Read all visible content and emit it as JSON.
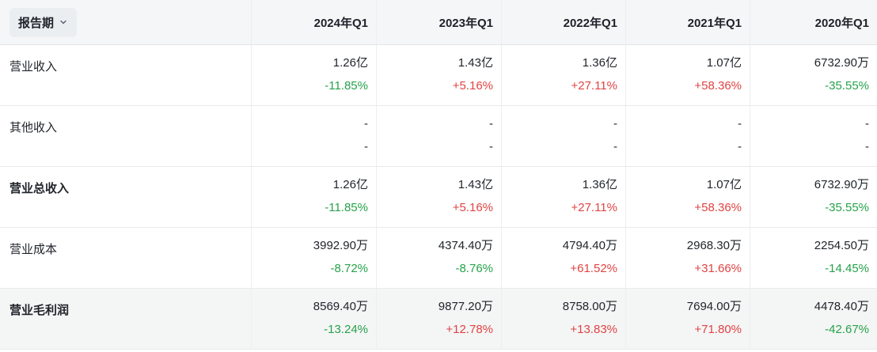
{
  "colors": {
    "up_red": "#e04343",
    "down_green": "#26a24b",
    "text_dark": "#1f2329",
    "header_bg": "#f5f6f7",
    "highlight_row_bg": "#f4f5f5",
    "border": "#eceef0"
  },
  "table": {
    "period_selector": {
      "label": "报告期",
      "icon": "chevron-down"
    },
    "columns": [
      "2024年Q1",
      "2023年Q1",
      "2022年Q1",
      "2021年Q1",
      "2020年Q1"
    ],
    "rows": [
      {
        "label": "营业收入",
        "bold": false,
        "highlight": false,
        "cells": [
          {
            "value": "1.26亿",
            "change": "-11.85%",
            "trend": "down"
          },
          {
            "value": "1.43亿",
            "change": "+5.16%",
            "trend": "up"
          },
          {
            "value": "1.36亿",
            "change": "+27.11%",
            "trend": "up"
          },
          {
            "value": "1.07亿",
            "change": "+58.36%",
            "trend": "up"
          },
          {
            "value": "6732.90万",
            "change": "-35.55%",
            "trend": "down"
          }
        ]
      },
      {
        "label": "其他收入",
        "bold": false,
        "highlight": false,
        "cells": [
          {
            "value": "-",
            "change": "-",
            "trend": "none"
          },
          {
            "value": "-",
            "change": "-",
            "trend": "none"
          },
          {
            "value": "-",
            "change": "-",
            "trend": "none"
          },
          {
            "value": "-",
            "change": "-",
            "trend": "none"
          },
          {
            "value": "-",
            "change": "-",
            "trend": "none"
          }
        ]
      },
      {
        "label": "营业总收入",
        "bold": true,
        "highlight": false,
        "cells": [
          {
            "value": "1.26亿",
            "change": "-11.85%",
            "trend": "down"
          },
          {
            "value": "1.43亿",
            "change": "+5.16%",
            "trend": "up"
          },
          {
            "value": "1.36亿",
            "change": "+27.11%",
            "trend": "up"
          },
          {
            "value": "1.07亿",
            "change": "+58.36%",
            "trend": "up"
          },
          {
            "value": "6732.90万",
            "change": "-35.55%",
            "trend": "down"
          }
        ]
      },
      {
        "label": "营业成本",
        "bold": false,
        "highlight": false,
        "cells": [
          {
            "value": "3992.90万",
            "change": "-8.72%",
            "trend": "down"
          },
          {
            "value": "4374.40万",
            "change": "-8.76%",
            "trend": "down"
          },
          {
            "value": "4794.40万",
            "change": "+61.52%",
            "trend": "up"
          },
          {
            "value": "2968.30万",
            "change": "+31.66%",
            "trend": "up"
          },
          {
            "value": "2254.50万",
            "change": "-14.45%",
            "trend": "down"
          }
        ]
      },
      {
        "label": "营业毛利润",
        "bold": true,
        "highlight": true,
        "cells": [
          {
            "value": "8569.40万",
            "change": "-13.24%",
            "trend": "down"
          },
          {
            "value": "9877.20万",
            "change": "+12.78%",
            "trend": "up"
          },
          {
            "value": "8758.00万",
            "change": "+13.83%",
            "trend": "up"
          },
          {
            "value": "7694.00万",
            "change": "+71.80%",
            "trend": "up"
          },
          {
            "value": "4478.40万",
            "change": "-42.67%",
            "trend": "down"
          }
        ]
      }
    ]
  }
}
